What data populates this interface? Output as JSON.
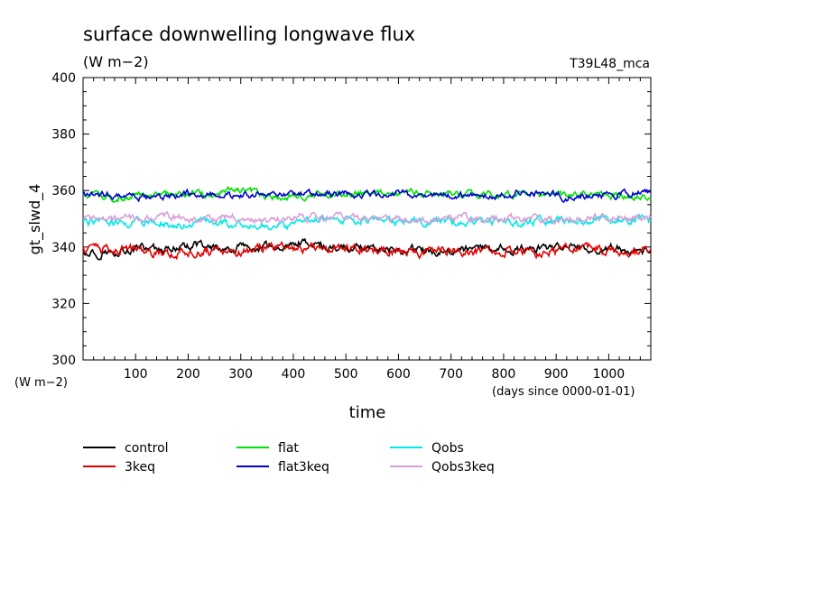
{
  "chart_data": {
    "type": "line",
    "title": "surface downwelling longwave flux",
    "subtitle": "(W m−2)",
    "run_label": "T39L48_mca",
    "ylabel": "gt_slwd_4",
    "yunit": "(W m−2)",
    "xlabel": "time",
    "xunit": "(days since 0000-01-01)",
    "xlim": [
      0,
      1080
    ],
    "ylim": [
      300,
      400
    ],
    "xticks": [
      100,
      200,
      300,
      400,
      500,
      600,
      700,
      800,
      900,
      1000
    ],
    "yticks": [
      300,
      320,
      340,
      360,
      380,
      400
    ],
    "grid": false,
    "legend_position": "bottom",
    "series": [
      {
        "name": "control",
        "color": "#000000",
        "mean": 339.0,
        "amplitude": 2.0,
        "range": [
          334,
          343
        ]
      },
      {
        "name": "3keq",
        "color": "#e00000",
        "mean": 339.0,
        "amplitude": 2.2,
        "range": [
          335,
          344
        ]
      },
      {
        "name": "flat",
        "color": "#00e000",
        "mean": 358.0,
        "amplitude": 1.6,
        "range": [
          355,
          362
        ]
      },
      {
        "name": "flat3keq",
        "color": "#0000d0",
        "mean": 358.5,
        "amplitude": 1.6,
        "range": [
          355,
          363
        ]
      },
      {
        "name": "Qobs",
        "color": "#00e8e8",
        "mean": 349.0,
        "amplitude": 1.8,
        "range": [
          345,
          353
        ]
      },
      {
        "name": "Qobs3keq",
        "color": "#d8a0d8",
        "mean": 350.0,
        "amplitude": 1.8,
        "range": [
          346,
          354
        ]
      }
    ]
  }
}
